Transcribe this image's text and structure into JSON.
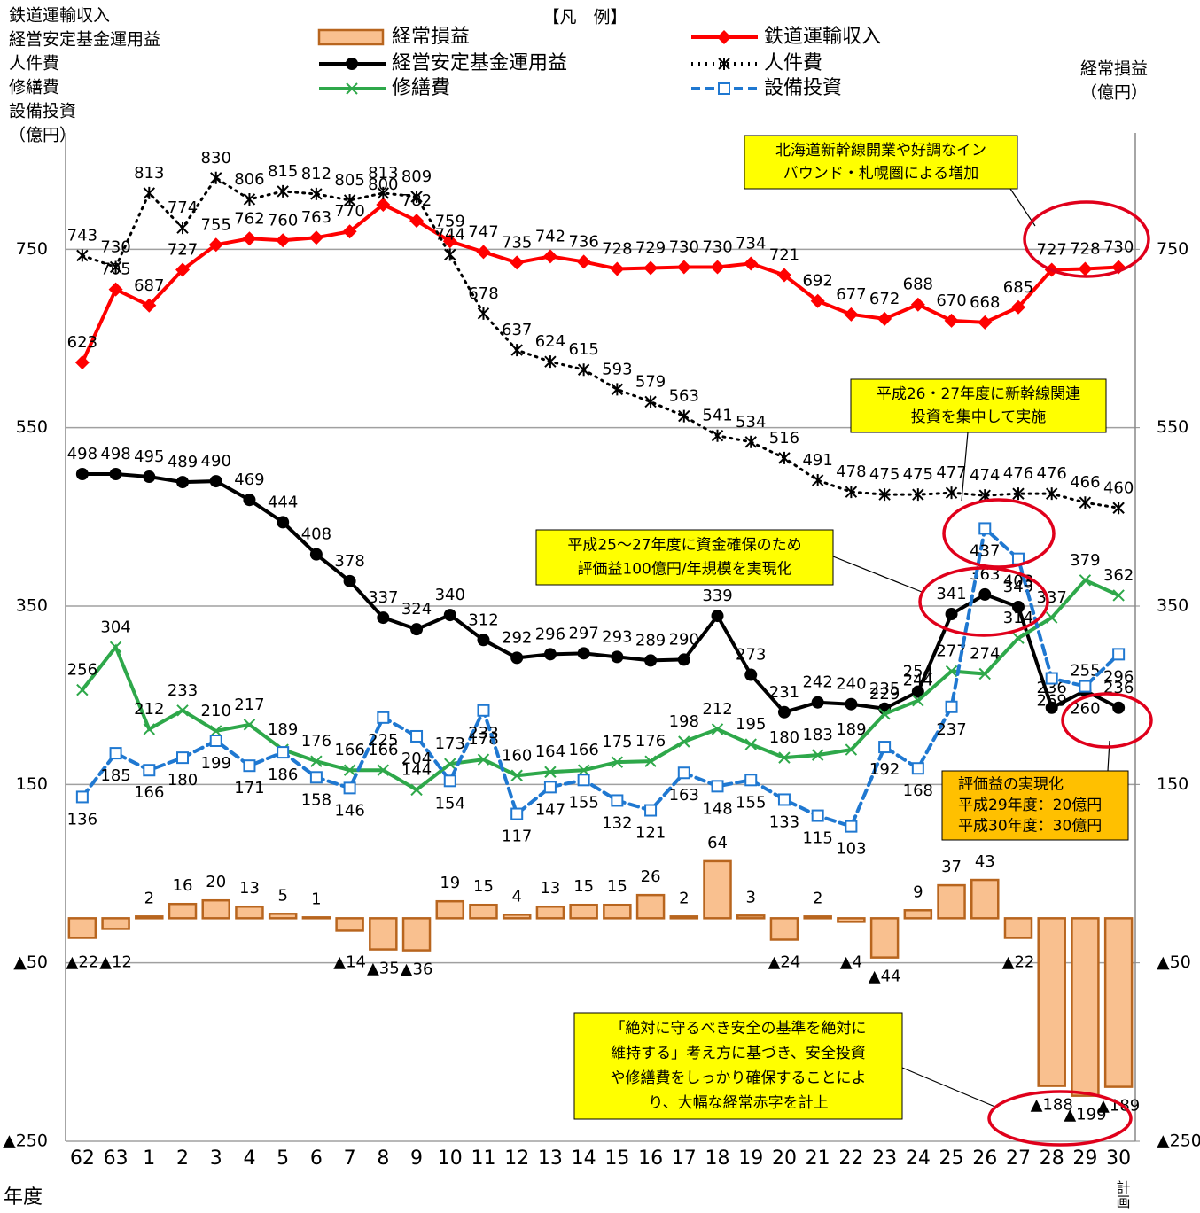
{
  "chart_data": {
    "type": "combo",
    "legend_title": "【凡　例】",
    "y_title": [
      "鉄道運輸収入",
      "経営安定基金運用益",
      "人件費",
      "修繕費",
      "設備投資",
      "（億円）"
    ],
    "y2_title": [
      "経常損益",
      "（億円）"
    ],
    "x_title": "年度",
    "x_note": "計画",
    "categories": [
      "62",
      "63",
      "1",
      "2",
      "3",
      "4",
      "5",
      "6",
      "7",
      "8",
      "9",
      "10",
      "11",
      "12",
      "13",
      "14",
      "15",
      "16",
      "17",
      "18",
      "19",
      "20",
      "21",
      "22",
      "23",
      "24",
      "25",
      "26",
      "27",
      "28",
      "29",
      "30"
    ],
    "ylim": [
      -250,
      950
    ],
    "yticks": [
      {
        "value": -250,
        "label": "▲250"
      },
      {
        "value": -50,
        "label": "▲50"
      },
      150,
      350,
      550,
      750
    ],
    "y2lim": [
      -250,
      950
    ],
    "y2ticks": [
      {
        "value": -250,
        "label": "▲250"
      },
      {
        "value": -50,
        "label": "▲50"
      },
      150,
      350,
      550,
      750
    ],
    "grid": true,
    "series": [
      {
        "name": "経常損益",
        "type": "bar",
        "axis": "y2",
        "color": "#f9c08f",
        "edge": "#b8651e",
        "values": [
          -22,
          -12,
          2,
          16,
          20,
          13,
          5,
          1,
          -14,
          -35,
          -36,
          19,
          15,
          4,
          13,
          15,
          15,
          26,
          2,
          64,
          3,
          -24,
          2,
          -4,
          -44,
          9,
          37,
          43,
          -22,
          -188,
          -199,
          -189
        ],
        "value_labels": [
          "▲22",
          "▲12",
          "2",
          "16",
          "20",
          "13",
          "5",
          "1",
          "▲14",
          "▲35",
          "▲36",
          "19",
          "15",
          "4",
          "13",
          "15",
          "15",
          "26",
          "2",
          "64",
          "3",
          "▲24",
          "2",
          "▲4",
          "▲44",
          "9",
          "37",
          "43",
          "▲22",
          "▲188",
          "▲199",
          "▲189"
        ]
      },
      {
        "name": "鉄道運輸収入",
        "type": "line",
        "color": "#ff0000",
        "marker": "diamond",
        "dash": "solid",
        "values": [
          623,
          705,
          687,
          727,
          755,
          762,
          760,
          763,
          770,
          800,
          782,
          759,
          747,
          735,
          742,
          736,
          728,
          729,
          730,
          730,
          734,
          721,
          692,
          677,
          672,
          688,
          670,
          668,
          685,
          727,
          728,
          730
        ]
      },
      {
        "name": "経営安定基金運用益",
        "type": "line",
        "color": "#000000",
        "marker": "circle",
        "dash": "solid",
        "values": [
          498,
          498,
          495,
          489,
          490,
          469,
          444,
          408,
          378,
          337,
          324,
          340,
          312,
          292,
          296,
          297,
          293,
          289,
          290,
          339,
          273,
          231,
          242,
          240,
          235,
          254,
          341,
          363,
          349,
          236,
          255,
          236
        ]
      },
      {
        "name": "人件費",
        "type": "line",
        "color": "#000000",
        "marker": "asterisk",
        "dash": "dotted",
        "values": [
          743,
          730,
          813,
          774,
          830,
          806,
          815,
          812,
          805,
          813,
          809,
          744,
          678,
          637,
          624,
          615,
          593,
          579,
          563,
          541,
          534,
          516,
          491,
          478,
          475,
          475,
          477,
          474,
          476,
          476,
          466,
          460
        ]
      },
      {
        "name": "修繕費",
        "type": "line",
        "color": "#2ea84a",
        "marker": "x",
        "dash": "solid",
        "values": [
          256,
          304,
          212,
          233,
          210,
          217,
          189,
          176,
          166,
          166,
          144,
          173,
          178,
          160,
          164,
          166,
          175,
          176,
          198,
          212,
          195,
          180,
          183,
          189,
          229,
          244,
          277,
          274,
          314,
          337,
          379,
          362
        ]
      },
      {
        "name": "設備投資",
        "type": "line",
        "color": "#1f78d1",
        "marker": "square",
        "dash": "dashed",
        "values": [
          136,
          185,
          166,
          180,
          199,
          171,
          186,
          158,
          146,
          225,
          204,
          154,
          233,
          117,
          147,
          155,
          132,
          121,
          163,
          148,
          155,
          133,
          115,
          103,
          192,
          168,
          237,
          437,
          403,
          269,
          260,
          296
        ]
      }
    ],
    "annotations": [
      {
        "lines": [
          "北海道新幹線開業や好調なイン",
          "バウンド・札幌圏による増加"
        ]
      },
      {
        "lines": [
          "平成26・27年度に新幹線関連",
          "投資を集中して実施"
        ]
      },
      {
        "lines": [
          "平成25～27年度に資金確保のため",
          "評価益100億円/年規模を実現化"
        ]
      },
      {
        "lines": [
          "評価益の実現化",
          "平成29年度：20億円",
          "平成30年度：30億円"
        ]
      },
      {
        "lines": [
          "「絶対に守るべき安全の基準を絶対に",
          "維持する」考え方に基づき、安全投資",
          "や修繕費をしっかり確保することによ",
          "り、大幅な経常赤字を計上"
        ]
      }
    ]
  }
}
